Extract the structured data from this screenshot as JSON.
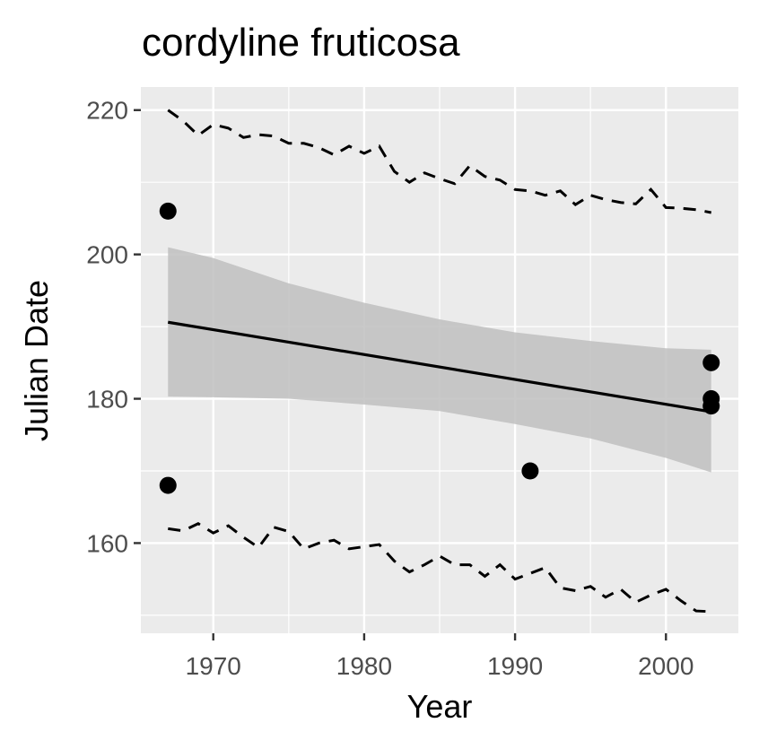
{
  "chart_data": {
    "type": "scatter",
    "title": "cordyline fruticosa",
    "xlabel": "Year",
    "ylabel": "Julian Date",
    "xlim": [
      1965.2,
      2004.8
    ],
    "ylim": [
      147.5,
      223.2
    ],
    "x_ticks": [
      1970,
      1980,
      1990,
      2000
    ],
    "y_ticks": [
      160,
      180,
      200,
      220
    ],
    "grid": true,
    "colors": {
      "panel": "#ebebeb",
      "grid": "#ffffff",
      "points": "#000000",
      "fit_line": "#000000",
      "ribbon": "#c0c0c0",
      "bounds": "#000000"
    },
    "points": [
      {
        "x": 1967,
        "y": 206
      },
      {
        "x": 1967,
        "y": 168
      },
      {
        "x": 1991,
        "y": 170
      },
      {
        "x": 2003,
        "y": 185
      },
      {
        "x": 2003,
        "y": 180
      },
      {
        "x": 2003,
        "y": 179
      }
    ],
    "fit_line": {
      "x": [
        1967,
        2003
      ],
      "y": [
        190.6,
        178.2
      ]
    },
    "ribbon": {
      "x": [
        1967,
        1970,
        1975,
        1980,
        1985,
        1990,
        1995,
        2000,
        2003
      ],
      "upper": [
        201.0,
        199.5,
        196.0,
        193.3,
        191.0,
        189.2,
        188.0,
        187.0,
        186.8
      ],
      "lower": [
        180.3,
        180.2,
        180.0,
        179.2,
        178.3,
        176.5,
        174.5,
        171.8,
        169.8
      ]
    },
    "upper_bound": {
      "x": [
        1967,
        1968,
        1969,
        1970,
        1971,
        1972,
        1973,
        1974,
        1975,
        1976,
        1977,
        1978,
        1979,
        1980,
        1981,
        1982,
        1983,
        1984,
        1985,
        1986,
        1987,
        1988,
        1989,
        1990,
        1991,
        1992,
        1993,
        1994,
        1995,
        1996,
        1997,
        1998,
        1999,
        2000,
        2001,
        2002,
        2003
      ],
      "y": [
        220.0,
        218.5,
        216.5,
        218.0,
        217.5,
        216.2,
        216.6,
        216.4,
        215.4,
        215.4,
        214.8,
        213.8,
        215.0,
        214.0,
        215.0,
        211.5,
        210.0,
        211.3,
        210.5,
        209.8,
        212.3,
        210.8,
        210.3,
        209.0,
        208.8,
        208.2,
        208.8,
        206.9,
        208.2,
        207.6,
        207.2,
        207.0,
        209.0,
        206.5,
        206.4,
        206.2,
        205.8
      ]
    },
    "lower_bound": {
      "x": [
        1967,
        1968,
        1969,
        1970,
        1971,
        1972,
        1973,
        1974,
        1975,
        1976,
        1977,
        1978,
        1979,
        1980,
        1981,
        1982,
        1983,
        1984,
        1985,
        1986,
        1987,
        1988,
        1989,
        1990,
        1991,
        1992,
        1993,
        1994,
        1995,
        1996,
        1997,
        1998,
        1999,
        2000,
        2001,
        2002,
        2003
      ],
      "y": [
        162.0,
        161.7,
        162.7,
        161.4,
        162.4,
        160.8,
        159.4,
        162.2,
        161.6,
        159.2,
        160.0,
        160.4,
        159.2,
        159.5,
        159.8,
        157.5,
        156.0,
        157.0,
        158.2,
        157.0,
        157.0,
        155.4,
        157.0,
        155.0,
        155.8,
        156.6,
        153.8,
        153.4,
        154.0,
        152.5,
        153.6,
        151.8,
        152.8,
        153.6,
        152.0,
        150.6,
        150.5
      ]
    }
  }
}
